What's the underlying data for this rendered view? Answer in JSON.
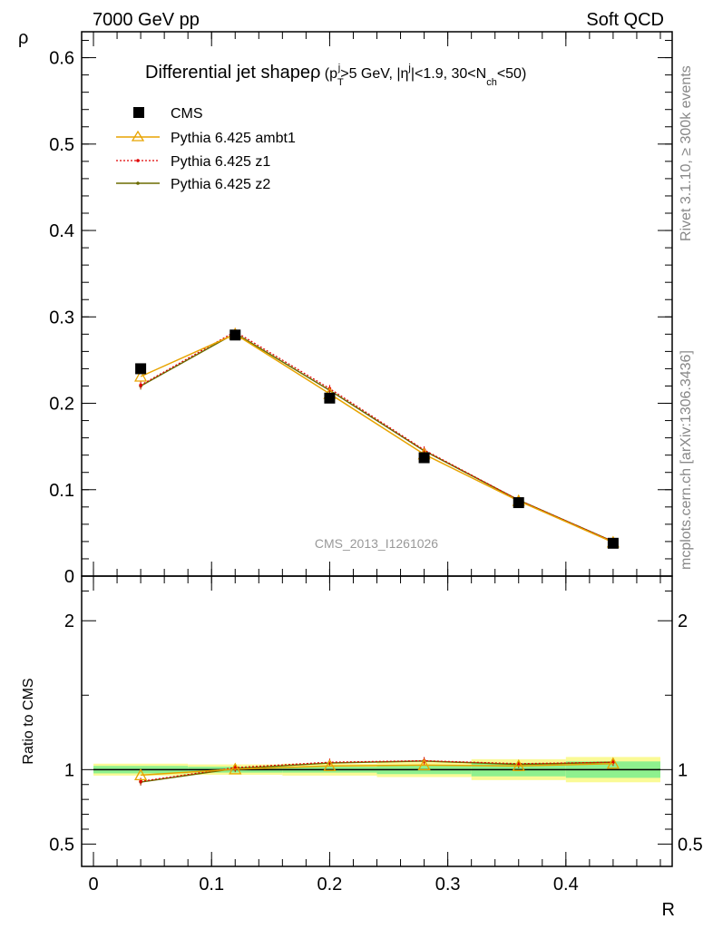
{
  "header": {
    "left": "7000 GeV pp",
    "right": "Soft QCD"
  },
  "side_labels": {
    "rivet": "Rivet 3.1.10, ≥ 300k events",
    "source": "mcplots.cern.ch [arXiv:1306.3436]"
  },
  "watermark": "CMS_2013_I1261026",
  "colors": {
    "cms": "#000000",
    "ambt1": "#e8a400",
    "z1": "#e00000",
    "z2": "#6b6b00",
    "band_inner": "#8ef08e",
    "band_outer": "#fafa96"
  },
  "chart_data": [
    {
      "type": "line",
      "title": "Differential jet shape ρ (p_T^j>5 GeV, |η^j|<1.9, 30<N_ch<50)",
      "title_parts": {
        "main": "Differential jet shape",
        "rho": "ρ",
        "open": " (p",
        "T": "T",
        "j1": "j",
        "mid1": ">5 GeV, |η",
        "j2": "j",
        "mid2": "|<1.9, 30<N",
        "ch": "ch",
        "close": "<50)"
      },
      "ylabel": "ρ",
      "xlim": [
        -0.01,
        0.49
      ],
      "ylim": [
        0,
        0.63
      ],
      "yticks": [
        0,
        0.1,
        0.2,
        0.3,
        0.4,
        0.5,
        0.6
      ],
      "ytick_labels": [
        "0",
        "0.1",
        "0.2",
        "0.3",
        "0.4",
        "0.5",
        "0.6"
      ],
      "x": [
        0.04,
        0.12,
        0.2,
        0.28,
        0.36,
        0.44
      ],
      "series": [
        {
          "name": "CMS",
          "values": [
            0.24,
            0.279,
            0.206,
            0.137,
            0.085,
            0.038
          ]
        },
        {
          "name": "Pythia 6.425 ambt1",
          "values": [
            0.231,
            0.28,
            0.211,
            0.141,
            0.087,
            0.039
          ]
        },
        {
          "name": "Pythia 6.425 z1",
          "values": [
            0.221,
            0.283,
            0.217,
            0.146,
            0.088,
            0.04
          ]
        },
        {
          "name": "Pythia 6.425 z2",
          "values": [
            0.22,
            0.281,
            0.215,
            0.145,
            0.088,
            0.04
          ]
        }
      ],
      "legend": "top-left"
    },
    {
      "type": "line",
      "ylabel": "Ratio to CMS",
      "xlabel": "R",
      "xlim": [
        -0.01,
        0.49
      ],
      "ylim": [
        0.35,
        2.3
      ],
      "yticks": [
        0.5,
        1,
        2
      ],
      "ytick_labels": [
        "0.5",
        "1",
        "2"
      ],
      "xticks": [
        0,
        0.1,
        0.2,
        0.3,
        0.4
      ],
      "xtick_labels": [
        "0",
        "0.1",
        "0.2",
        "0.3",
        "0.4"
      ],
      "x": [
        0.04,
        0.12,
        0.2,
        0.28,
        0.36,
        0.44
      ],
      "bins": [
        [
          0,
          0.08
        ],
        [
          0.08,
          0.16
        ],
        [
          0.16,
          0.24
        ],
        [
          0.24,
          0.32
        ],
        [
          0.32,
          0.4
        ],
        [
          0.4,
          0.48
        ]
      ],
      "band_inner": [
        0.025,
        0.02,
        0.02,
        0.03,
        0.045,
        0.055
      ],
      "band_outer": [
        0.04,
        0.035,
        0.04,
        0.05,
        0.07,
        0.085
      ],
      "series": [
        {
          "name": "Pythia 6.425 ambt1",
          "values": [
            0.963,
            1.003,
            1.025,
            1.03,
            1.025,
            1.04
          ]
        },
        {
          "name": "Pythia 6.425 z1",
          "values": [
            0.921,
            1.014,
            1.05,
            1.06,
            1.04,
            1.05
          ]
        },
        {
          "name": "Pythia 6.425 z2",
          "values": [
            0.917,
            1.007,
            1.045,
            1.058,
            1.035,
            1.05
          ]
        }
      ]
    }
  ]
}
